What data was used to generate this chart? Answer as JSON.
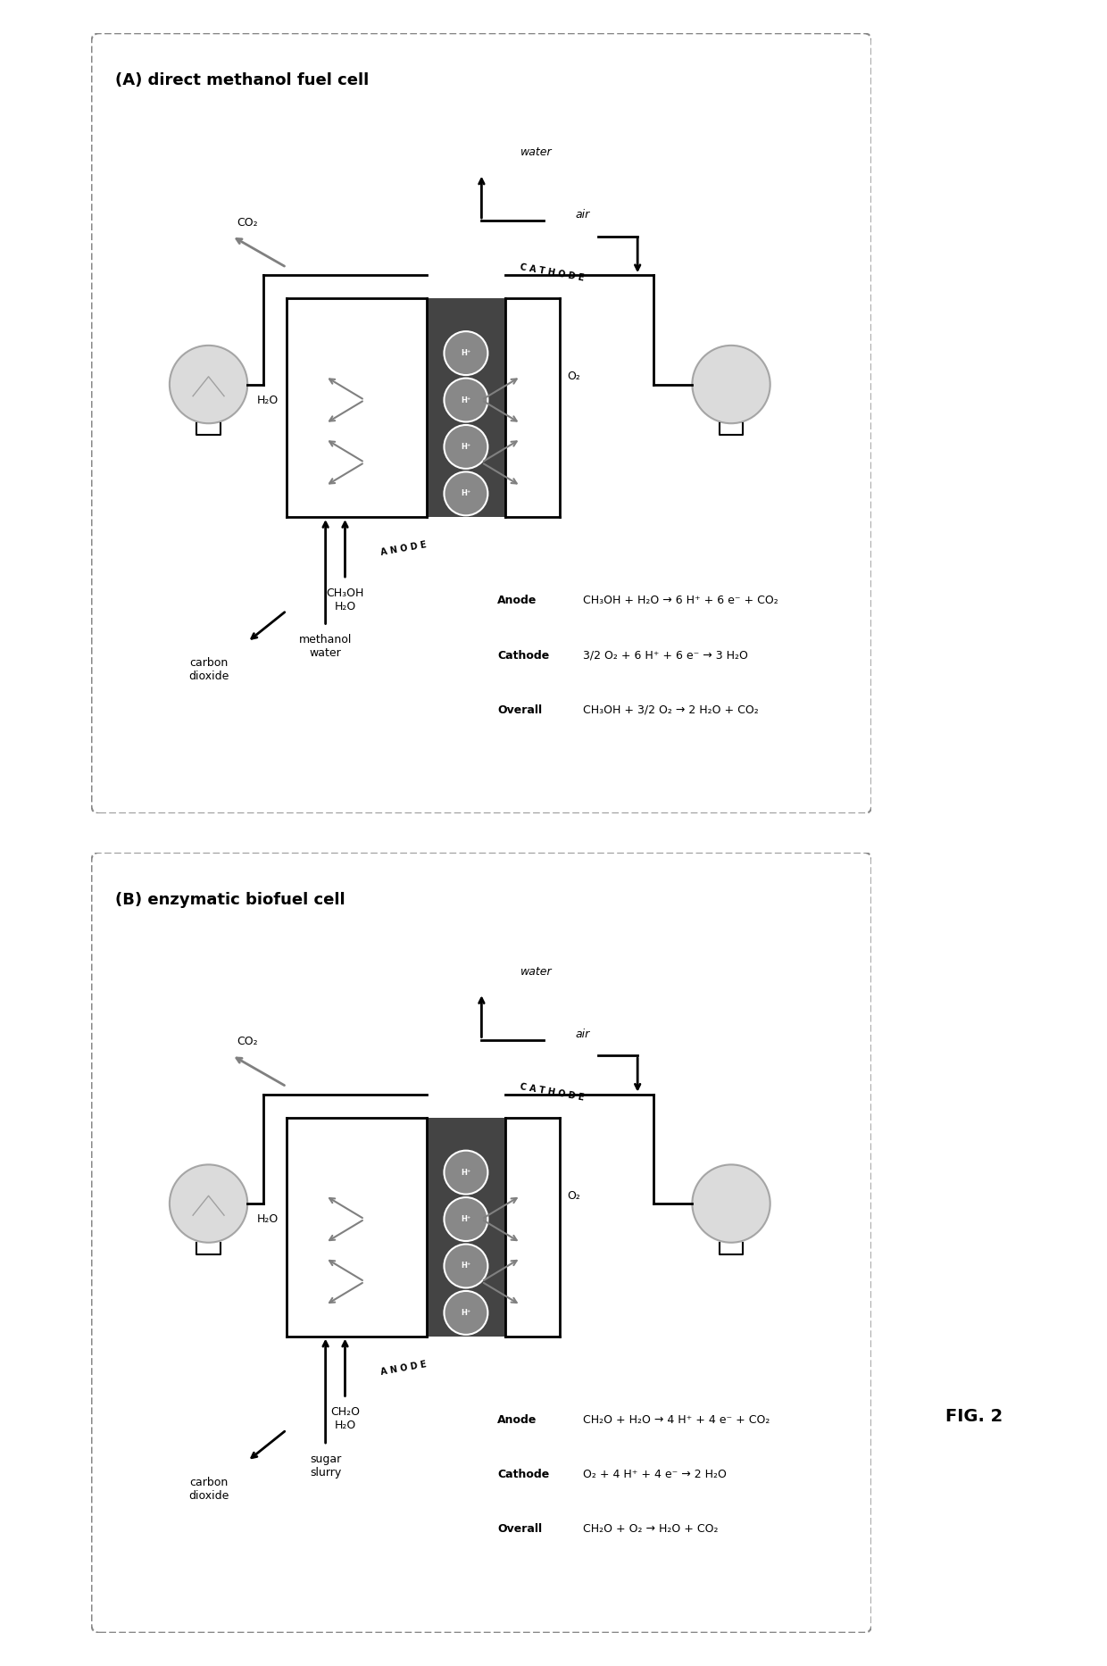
{
  "fig_width": 12.4,
  "fig_height": 18.66,
  "bg_color": "#ffffff",
  "panel_A": {
    "title": "(A) direct methanol fuel cell",
    "fuel_in": "methanol\nwater",
    "waste_out": "carbon\ndioxide",
    "cathode_in": "air",
    "water_out": "water",
    "co2_label": "CO₂",
    "h2o_label": "H₂O",
    "o2_label": "O₂",
    "methanol_label": "CH₃OH\nH₂O",
    "anode_label": "ANODE",
    "cathode_label": "CATHODE",
    "anode_eq": "CH₃OH + H₂O → 6 H⁺ + 6 e⁻ + CO₂",
    "cathode_eq": "3/2 O₂ + 6 H⁺ + 6 e⁻ → 3 H₂O",
    "overall_eq": "CH₃OH + 3/2 O₂ → 2 H₂O + CO₂"
  },
  "panel_B": {
    "title": "(B) enzymatic biofuel cell",
    "fuel_in": "sugar\nslurry",
    "waste_out": "carbon\ndioxide",
    "cathode_in": "air",
    "water_out": "water",
    "co2_label": "CO₂",
    "h2o_label": "H₂O",
    "o2_label": "O₂",
    "sugar_label": "CH₂O\nH₂O",
    "anode_label": "ANODE",
    "cathode_label": "CATHODE",
    "anode_eq": "CH₂O + H₂O → 4 H⁺ + 4 e⁻ + CO₂",
    "cathode_eq": "O₂ + 4 H⁺ + 4 e⁻ → 2 H₂O",
    "overall_eq": "CH₂O + O₂ → H₂O + CO₂"
  },
  "fig2_label": "FIG. 2"
}
